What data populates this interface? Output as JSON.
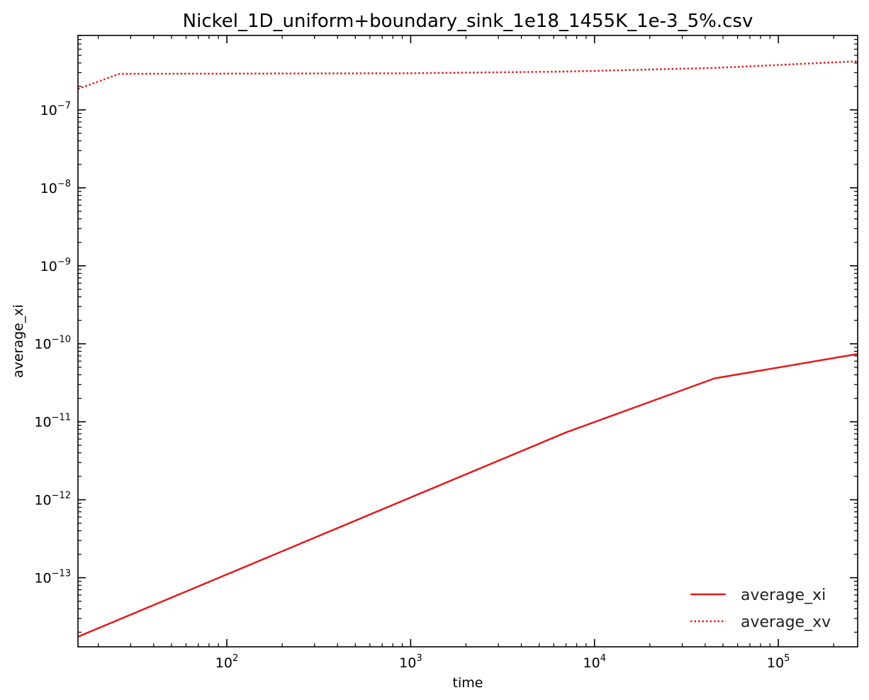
{
  "chart_data": {
    "type": "line",
    "title": "Nickel_1D_uniform+boundary_sink_1e18_1455K_1e-3_5%.csv",
    "xlabel": "time",
    "ylabel": "average_xi",
    "xscale": "log",
    "yscale": "log",
    "xlim": [
      15.5,
      270000
    ],
    "ylim": [
      1.3e-14,
      9e-07
    ],
    "x_ticks": [
      {
        "value": 100,
        "base": "10",
        "exp": "2"
      },
      {
        "value": 1000,
        "base": "10",
        "exp": "3"
      },
      {
        "value": 10000,
        "base": "10",
        "exp": "4"
      },
      {
        "value": 100000,
        "base": "10",
        "exp": "5"
      }
    ],
    "y_ticks": [
      {
        "value": 1e-13,
        "base": "10",
        "exp": "−13"
      },
      {
        "value": 1e-12,
        "base": "10",
        "exp": "−12"
      },
      {
        "value": 1e-11,
        "base": "10",
        "exp": "−11"
      },
      {
        "value": 1e-10,
        "base": "10",
        "exp": "−10"
      },
      {
        "value": 1e-09,
        "base": "10",
        "exp": "−9"
      },
      {
        "value": 1e-08,
        "base": "10",
        "exp": "−8"
      },
      {
        "value": 1e-07,
        "base": "10",
        "exp": "−7"
      }
    ],
    "grid": false,
    "legend_position": "lower-right",
    "series": [
      {
        "name": "average_xi",
        "color": "#e41a1c",
        "style": "solid",
        "x": [
          15.5,
          7000,
          45000,
          270000
        ],
        "y": [
          1.75e-14,
          7.3e-12,
          3.6e-11,
          7.4e-11
        ]
      },
      {
        "name": "average_xv",
        "color": "#e41a1c",
        "style": "dotted",
        "x": [
          15.5,
          26,
          1000,
          7000,
          45000,
          270000
        ],
        "y": [
          1.85e-07,
          2.9e-07,
          2.95e-07,
          3.1e-07,
          3.45e-07,
          4.2e-07
        ]
      }
    ]
  }
}
